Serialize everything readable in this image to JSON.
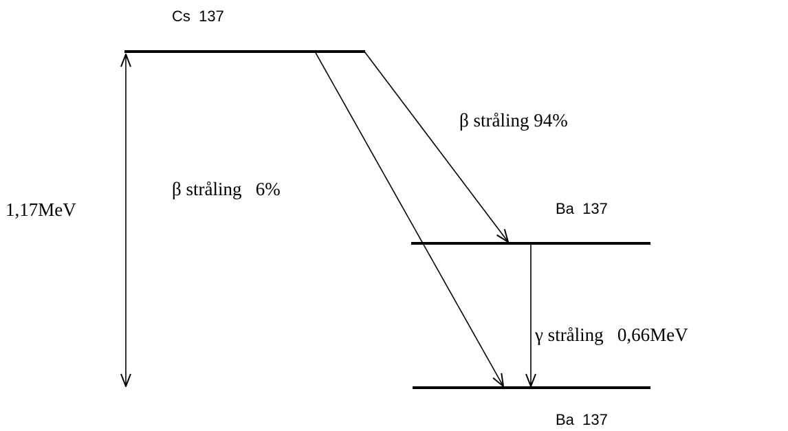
{
  "levels": [
    {
      "label": "Cs  137"
    },
    {
      "label": "Ba  137"
    },
    {
      "label": "Ba  137"
    }
  ],
  "transitions": [
    {
      "label": "β stråling 94%"
    },
    {
      "label": "β stråling   6%"
    },
    {
      "label": "γ stråling   0,66MeV"
    }
  ],
  "total_energy": {
    "label": "1,17MeV"
  }
}
